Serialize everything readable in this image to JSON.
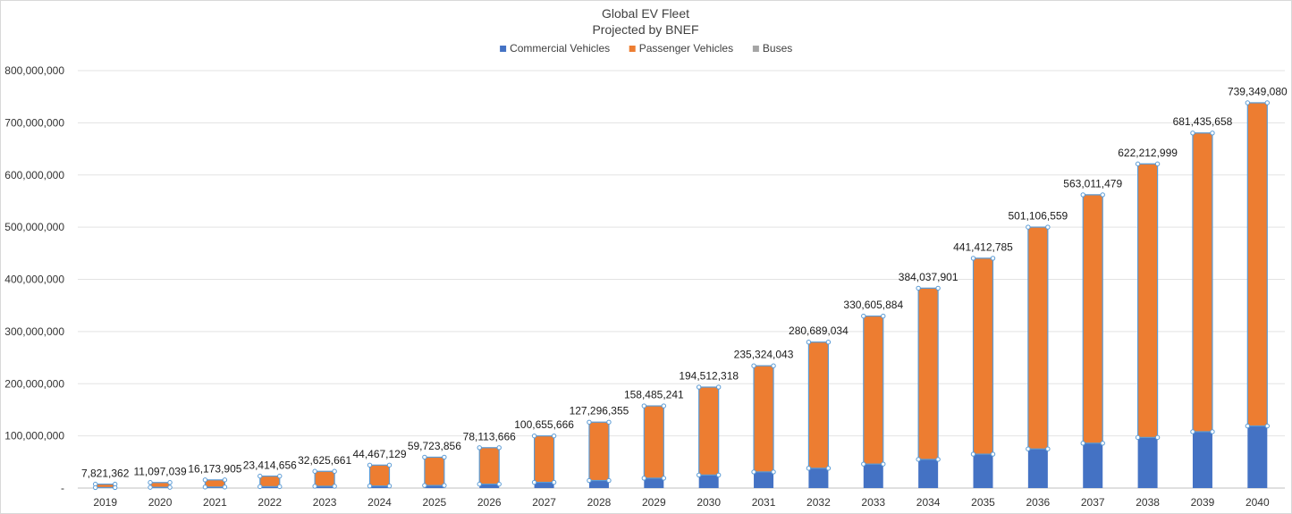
{
  "chart_data": {
    "type": "bar",
    "stacked": true,
    "title": "Global EV Fleet",
    "subtitle": "Projected by BNEF",
    "xlabel": "",
    "ylabel": "",
    "ylim": [
      0,
      800000000
    ],
    "grid": true,
    "legend_position": "top",
    "y_tick_labels": [
      "-",
      "100,000,000",
      "200,000,000",
      "300,000,000",
      "400,000,000",
      "500,000,000",
      "600,000,000",
      "700,000,000",
      "800,000,000"
    ],
    "y_ticks": [
      0,
      100000000,
      200000000,
      300000000,
      400000000,
      500000000,
      600000000,
      700000000,
      800000000
    ],
    "categories": [
      "2019",
      "2020",
      "2021",
      "2022",
      "2023",
      "2024",
      "2025",
      "2026",
      "2027",
      "2028",
      "2029",
      "2030",
      "2031",
      "2032",
      "2033",
      "2034",
      "2035",
      "2036",
      "2037",
      "2038",
      "2039",
      "2040"
    ],
    "series": [
      {
        "name": "Commercial Vehicles",
        "color": "#4472C4",
        "values": [
          1000000,
          1500000,
          2000000,
          2800000,
          3500000,
          4000000,
          5000000,
          7500000,
          11000000,
          14500000,
          19000000,
          25000000,
          31000000,
          38000000,
          46000000,
          55000000,
          65000000,
          75000000,
          86000000,
          97000000,
          108000000,
          119000000
        ]
      },
      {
        "name": "Passenger Vehicles",
        "color": "#ED7D31",
        "values": [
          6521362,
          9197039,
          13673905,
          20114656,
          28625661,
          40067129,
          54223856,
          69913666,
          88955666,
          111796355,
          138485241,
          168512318,
          203324043,
          241689034,
          283605884,
          328037901,
          375412785,
          425106559,
          476011479,
          524212999,
          572435658,
          619349080
        ]
      },
      {
        "name": "Buses",
        "color": "#A5A5A5",
        "values": [
          300000,
          400000,
          500000,
          500000,
          500000,
          400000,
          500000,
          700000,
          700000,
          1000000,
          1000000,
          1000000,
          1000000,
          1000000,
          1000000,
          1000000,
          1000000,
          1000000,
          1000000,
          1000000,
          1000000,
          1000000
        ]
      }
    ],
    "total_labels": [
      "7,821,362",
      "11,097,039",
      "16,173,905",
      "23,414,656",
      "32,625,661",
      "44,467,129",
      "59,723,856",
      "78,113,666",
      "100,655,666",
      "127,296,355",
      "158,485,241",
      "194,512,318",
      "235,324,043",
      "280,689,034",
      "330,605,884",
      "384,037,901",
      "441,412,785",
      "501,106,559",
      "563,011,479",
      "622,212,999",
      "681,435,658",
      "739,349,080"
    ],
    "totals": [
      7821362,
      11097039,
      16173905,
      23414656,
      32625661,
      44467129,
      59723856,
      78113666,
      100655666,
      127296355,
      158485241,
      194512318,
      235324043,
      280689034,
      330605884,
      384037901,
      441412785,
      501106559,
      563011479,
      622212999,
      681435658,
      739349080
    ],
    "selection_color": "#5B9BD5"
  }
}
